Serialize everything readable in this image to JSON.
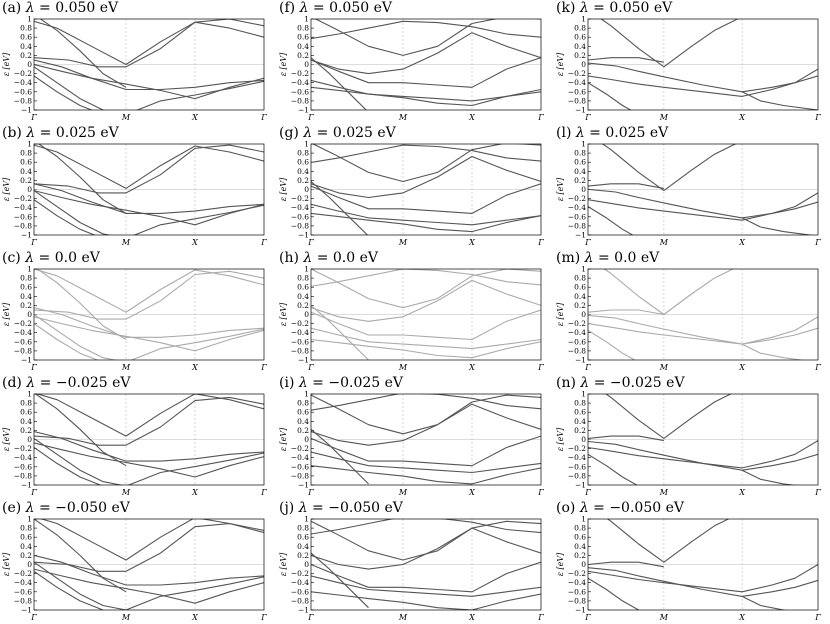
{
  "chart_data": {
    "type": "line",
    "layout_rows": 5,
    "layout_cols": 3,
    "ylabel": "ε [eV]",
    "ylim": [
      -1,
      1
    ],
    "yticks": [
      "1",
      "0.8",
      "0.6",
      "0.4",
      "0.2",
      "0",
      "−0.2",
      "−0.4",
      "−0.6",
      "−0.8",
      "−1"
    ],
    "x_path_labels": [
      "Γ",
      "M",
      "X",
      "Γ"
    ],
    "x_path_positions": [
      0,
      0.4,
      0.7,
      1.0
    ],
    "x_path_positions_col3": [
      0,
      0.33,
      0.67,
      1.0
    ],
    "grid": "dashed vertical at M and X, horizontal at 0",
    "line_color": "#555555",
    "panels": [
      {
        "id": "a",
        "label": "(a)",
        "lambda_text": "λ",
        "value_text": " = 0.050 eV"
      },
      {
        "id": "f",
        "label": "(f)",
        "lambda_text": "λ",
        "value_text": " = 0.050 eV"
      },
      {
        "id": "k",
        "label": "(k)",
        "lambda_text": "λ",
        "value_text": " = 0.050 eV"
      },
      {
        "id": "b",
        "label": "(b)",
        "lambda_text": "λ",
        "value_text": " = 0.025 eV"
      },
      {
        "id": "g",
        "label": "(g)",
        "lambda_text": "λ",
        "value_text": " = 0.025 eV"
      },
      {
        "id": "l",
        "label": "(l)",
        "lambda_text": "λ",
        "value_text": " = 0.025 eV"
      },
      {
        "id": "c",
        "label": "(c)",
        "lambda_text": "λ",
        "value_text": " = 0.0 eV"
      },
      {
        "id": "h",
        "label": "(h)",
        "lambda_text": "λ",
        "value_text": " = 0.0 eV"
      },
      {
        "id": "m",
        "label": "(m)",
        "lambda_text": "λ",
        "value_text": " = 0.0 eV"
      },
      {
        "id": "d",
        "label": "(d)",
        "lambda_text": "λ",
        "value_text": " = −0.025 eV"
      },
      {
        "id": "i",
        "label": "(i)",
        "lambda_text": "λ",
        "value_text": " = −0.025 eV"
      },
      {
        "id": "n",
        "label": "(n)",
        "lambda_text": "λ",
        "value_text": " = −0.025 eV"
      },
      {
        "id": "e",
        "label": "(e)",
        "lambda_text": "λ",
        "value_text": " = −0.050 eV"
      },
      {
        "id": "j",
        "label": "(j)",
        "lambda_text": "λ",
        "value_text": " = −0.050 eV"
      },
      {
        "id": "o",
        "label": "(o)",
        "lambda_text": "λ",
        "value_text": " = −0.050 eV"
      }
    ],
    "bands_col1": [
      {
        "x": [
          0,
          0.1,
          0.25,
          0.4,
          0.55,
          0.7,
          0.85,
          1.0
        ],
        "y": [
          1.0,
          0.85,
          0.45,
          0.05,
          0.55,
          0.98,
          0.85,
          0.65
        ]
      },
      {
        "x": [
          0,
          0.15,
          0.28,
          0.4,
          0.55,
          0.7,
          0.85,
          1.0
        ],
        "y": [
          0.1,
          0.05,
          -0.1,
          -0.1,
          0.3,
          0.88,
          0.95,
          0.8
        ]
      },
      {
        "x": [
          0,
          0.12,
          0.25,
          0.4,
          0.55,
          0.7,
          0.85,
          1.0
        ],
        "y": [
          0.15,
          0.0,
          -0.25,
          -0.5,
          -0.5,
          -0.45,
          -0.35,
          -0.3
        ]
      },
      {
        "x": [
          0,
          0.12,
          0.25,
          0.4,
          0.55,
          0.7,
          0.85,
          1.0
        ],
        "y": [
          -0.05,
          -0.2,
          -0.35,
          -0.48,
          -0.62,
          -0.8,
          -0.55,
          -0.35
        ]
      },
      {
        "x": [
          0,
          0.1,
          0.2,
          0.3,
          0.4,
          0.55,
          0.7,
          0.85,
          1.0
        ],
        "y": [
          0.0,
          -0.35,
          -0.7,
          -0.95,
          -1.05,
          -0.75,
          -0.62,
          -0.48,
          -0.32
        ]
      },
      {
        "x": [
          0,
          0.1,
          0.2,
          0.3,
          0.4
        ],
        "y": [
          1.05,
          0.7,
          0.25,
          -0.25,
          -0.55
        ]
      },
      {
        "x": [
          0,
          0.1,
          0.2,
          0.3
        ],
        "y": [
          -0.2,
          -0.55,
          -0.85,
          -1.05
        ]
      }
    ],
    "bands_col2": [
      {
        "x": [
          0,
          0.12,
          0.25,
          0.4,
          0.55,
          0.7,
          0.85,
          1.0
        ],
        "y": [
          0.62,
          0.72,
          0.85,
          1.0,
          0.97,
          0.88,
          0.72,
          0.65
        ]
      },
      {
        "x": [
          0,
          0.1,
          0.25,
          0.4,
          0.55,
          0.7,
          0.85,
          1.0
        ],
        "y": [
          1.0,
          0.75,
          0.35,
          0.15,
          0.35,
          0.85,
          1.0,
          0.95
        ]
      },
      {
        "x": [
          0,
          0.12,
          0.25,
          0.4,
          0.55,
          0.7,
          0.85,
          1.0
        ],
        "y": [
          0.15,
          -0.05,
          -0.15,
          -0.05,
          0.3,
          0.75,
          0.45,
          0.2
        ]
      },
      {
        "x": [
          0,
          0.12,
          0.25,
          0.4,
          0.55,
          0.7,
          0.85,
          1.0
        ],
        "y": [
          0.05,
          -0.2,
          -0.45,
          -0.45,
          -0.5,
          -0.55,
          -0.15,
          0.1
        ]
      },
      {
        "x": [
          0,
          0.12,
          0.25,
          0.4,
          0.55,
          0.7,
          0.85,
          1.0
        ],
        "y": [
          -0.3,
          -0.45,
          -0.6,
          -0.65,
          -0.7,
          -0.75,
          -0.65,
          -0.55
        ]
      },
      {
        "x": [
          0,
          0.12,
          0.25,
          0.4,
          0.55,
          0.7,
          0.85,
          1.0
        ],
        "y": [
          -0.55,
          -0.62,
          -0.7,
          -0.78,
          -0.9,
          -0.95,
          -0.75,
          -0.6
        ]
      },
      {
        "x": [
          0,
          0.08,
          0.16,
          0.25
        ],
        "y": [
          0.2,
          -0.15,
          -0.55,
          -1.0
        ]
      }
    ],
    "bands_col3": [
      {
        "x": [
          0,
          0.1,
          0.22,
          0.33,
          0.45,
          0.55,
          0.67
        ],
        "y": [
          1.25,
          0.9,
          0.4,
          0.0,
          0.45,
          0.8,
          1.1
        ]
      },
      {
        "x": [
          0,
          0.12,
          0.22,
          0.33,
          0.5,
          0.67,
          0.8,
          0.9,
          1.0
        ],
        "y": [
          -0.02,
          -0.08,
          -0.2,
          -0.32,
          -0.5,
          -0.65,
          -0.55,
          -0.45,
          -0.3
        ]
      },
      {
        "x": [
          0,
          0.1,
          0.22,
          0.33,
          0.5,
          0.67,
          0.8,
          0.9,
          1.0
        ],
        "y": [
          -0.2,
          -0.28,
          -0.38,
          -0.45,
          -0.55,
          -0.65,
          -0.5,
          -0.35,
          -0.05
        ]
      },
      {
        "x": [
          0,
          0.1,
          0.22,
          0.33
        ],
        "y": [
          0.05,
          0.1,
          0.1,
          0.0
        ]
      },
      {
        "x": [
          0,
          0.08,
          0.15,
          0.22
        ],
        "y": [
          -0.35,
          -0.6,
          -0.85,
          -1.05
        ]
      },
      {
        "x": [
          0.67,
          0.75,
          0.85,
          1.0
        ],
        "y": [
          -0.65,
          -0.85,
          -0.95,
          -1.05
        ]
      }
    ]
  }
}
